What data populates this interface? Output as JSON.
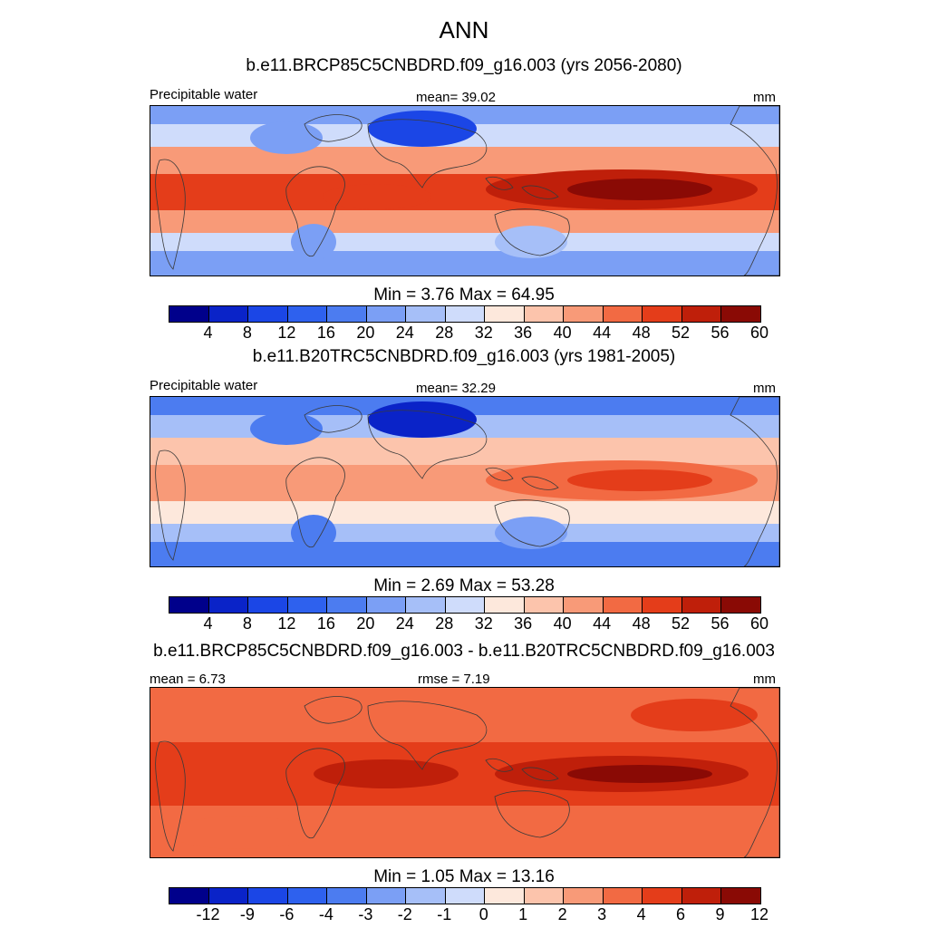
{
  "main_title": "ANN",
  "panels": [
    {
      "case_title": "b.e11.BRCP85C5CNBDRD.f09_g16.003 (yrs 2056-2080)",
      "left_label": "Precipitable water",
      "center_label": "mean=  39.02",
      "right_label": "mm",
      "minmax": "Min =   3.76 Max =  64.95",
      "scale": "abs",
      "tick_labels": [
        "4",
        "8",
        "12",
        "16",
        "20",
        "24",
        "28",
        "32",
        "36",
        "40",
        "44",
        "48",
        "52",
        "56",
        "60"
      ]
    },
    {
      "case_title": "b.e11.B20TRC5CNBDRD.f09_g16.003 (yrs 1981-2005)",
      "left_label": "Precipitable water",
      "center_label": "mean=  32.29",
      "right_label": "mm",
      "minmax": "Min =   2.69 Max =  53.28",
      "scale": "abs",
      "tick_labels": [
        "4",
        "8",
        "12",
        "16",
        "20",
        "24",
        "28",
        "32",
        "36",
        "40",
        "44",
        "48",
        "52",
        "56",
        "60"
      ]
    },
    {
      "case_title": "b.e11.BRCP85C5CNBDRD.f09_g16.003 - b.e11.B20TRC5CNBDRD.f09_g16.003",
      "left_label": "mean =   6.73",
      "center_label": "rmse =   7.19",
      "right_label": "mm",
      "minmax": "Min =   1.05 Max =  13.16",
      "scale": "diff",
      "tick_labels": [
        "-12",
        "-9",
        "-6",
        "-4",
        "-3",
        "-2",
        "-1",
        "0",
        "1",
        "2",
        "3",
        "4",
        "6",
        "9",
        "12"
      ]
    }
  ],
  "colors": {
    "palette": [
      "#00008b",
      "#0a23c8",
      "#1b46e6",
      "#2e61ee",
      "#4c7cf0",
      "#7b9ff5",
      "#a6bff8",
      "#cfdcfb",
      "#fde8dc",
      "#fcc4ac",
      "#f89a78",
      "#f26a43",
      "#e43d1a",
      "#bf1f0a",
      "#8a0a05"
    ],
    "map_default": "#f6c8b0",
    "coastline": "#3a3a3a"
  }
}
